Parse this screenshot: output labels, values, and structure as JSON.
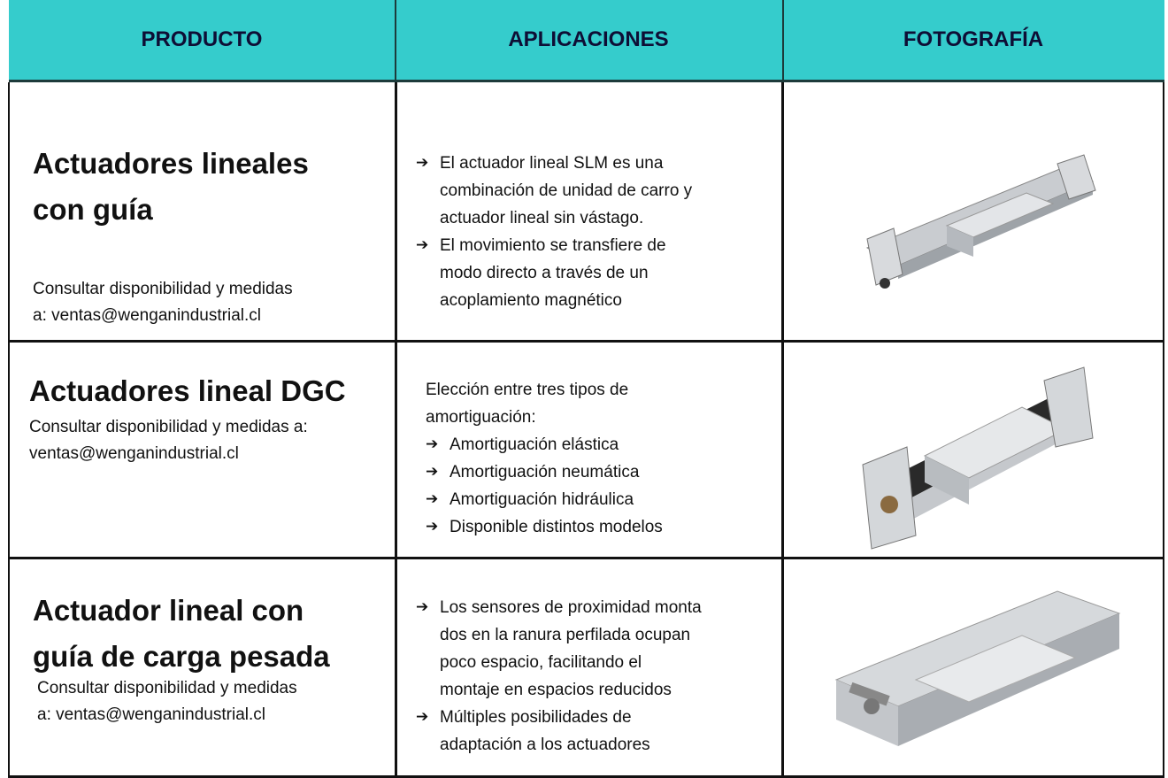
{
  "header": {
    "columns": [
      "PRODUCTO",
      "APLICACIONES",
      "FOTOGRAFÍA"
    ]
  },
  "rows": [
    {
      "title": [
        "Actuadores lineales",
        "con guía"
      ],
      "note": [
        "Consultar disponibilidad y medidas",
        "a: ventas@wenganindustrial.cl"
      ],
      "bullets": [
        [
          "El actuador lineal SLM es una",
          "combinación de unidad de carro y",
          "actuador lineal sin vástago."
        ],
        [
          "El movimiento se transfiere de",
          "modo directo a través de un",
          "acoplamiento magnético"
        ]
      ]
    },
    {
      "title": [
        "Actuadores lineal DGC"
      ],
      "note": [
        "Consultar disponibilidad y medidas a:",
        "ventas@wenganindustrial.cl"
      ],
      "intro": [
        "Elección entre tres tipos de",
        "amortiguación:"
      ],
      "bullets": [
        [
          "Amortiguación elástica"
        ],
        [
          "Amortiguación neumática"
        ],
        [
          "Amortiguación hidráulica"
        ],
        [
          "Disponible distintos modelos"
        ]
      ]
    },
    {
      "title": [
        "Actuador lineal con",
        "guía de carga pesada"
      ],
      "note": [
        "Consultar disponibilidad y medidas",
        "a: ventas@wenganindustrial.cl"
      ],
      "bullets": [
        [
          "Los sensores de proximidad monta",
          "dos en la ranura perfilada ocupan",
          "poco espacio, facilitando el",
          "montaje en espacios reducidos"
        ],
        [
          "Múltiples posibilidades de",
          "adaptación a los actuadores"
        ]
      ]
    }
  ]
}
